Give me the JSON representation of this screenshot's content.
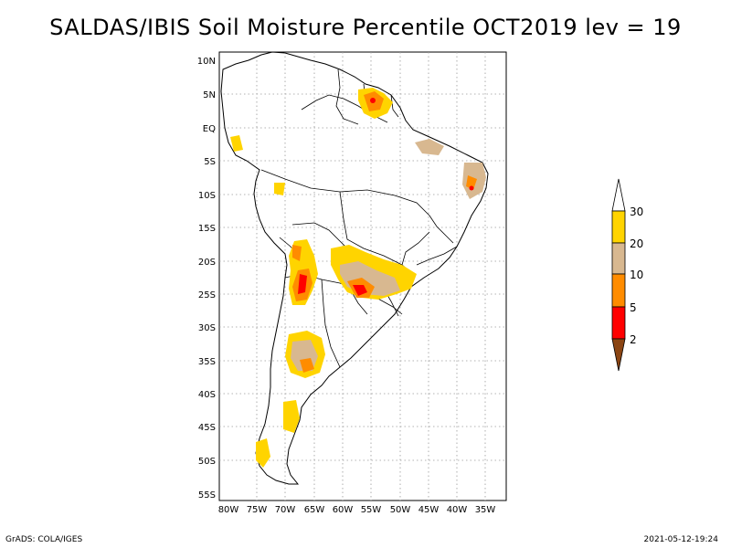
{
  "title": "SALDAS/IBIS Soil Moisture Percentile OCT2019 lev = 19",
  "footer": {
    "left": "GrADS: COLA/IGES",
    "right": "2021-05-12-19:24"
  },
  "map": {
    "lat_labels": [
      "10N",
      "5N",
      "EQ",
      "5S",
      "10S",
      "15S",
      "20S",
      "25S",
      "30S",
      "35S",
      "40S",
      "45S",
      "50S",
      "55S"
    ],
    "lon_labels": [
      "80W",
      "75W",
      "70W",
      "65W",
      "60W",
      "55W",
      "50W",
      "45W",
      "40W",
      "35W"
    ]
  },
  "legend": {
    "labels": [
      "30",
      "20",
      "10",
      "5",
      "2"
    ],
    "colors": {
      "above": "#ffffff",
      "c20_30": "#ffd400",
      "c10_20": "#d8b890",
      "c5_10": "#ff8c00",
      "c2_5": "#ff0000",
      "below2": "#8b4513"
    }
  }
}
